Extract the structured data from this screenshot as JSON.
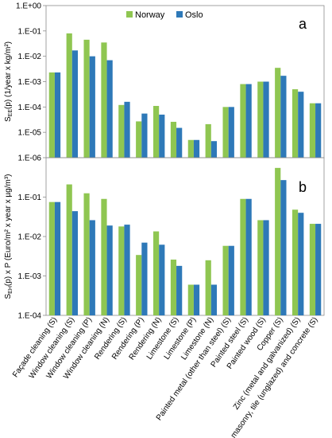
{
  "colors": {
    "norway": "#8fc651",
    "oslo": "#2e79b8",
    "frame": "#8c8c8c"
  },
  "chart_data": [
    {
      "type": "bar",
      "panel_letter": "a",
      "ylabel": "S_EE(p) (1/year x kg/m²)",
      "ylabel_parts": {
        "main": "S",
        "sub": "EE",
        "rest": "(p) (1/year x kg/m²)"
      },
      "yscale": "log",
      "ylim": [
        1e-06,
        1
      ],
      "ytick_labels": [
        "1.E+00",
        "1.E-01",
        "1.E-02",
        "1.E-03",
        "1.E-04",
        "1.E-05",
        "1.E-06"
      ],
      "legend_position": "top-center",
      "grid": false,
      "categories": [
        "Façade cleaning (S)",
        "Window cleaning (S)",
        "Window cleaning (P)",
        "Window cleaning (N)",
        "Rendering (S)",
        "Rendering (P)",
        "Rendering (N)",
        "Limestone (S)",
        "Limestone (P)",
        "Limestone (N)",
        "Painted metal (other than steel) (S)",
        "Painted steel (S)",
        "Painted wood (S)",
        "Copper (S)",
        "Zinc (metal and galvanized) (S)",
        "Brick masonry, tile (unglazed) and concrete (S)"
      ],
      "series": [
        {
          "name": "Norway",
          "values": [
            0.0023,
            0.08,
            0.045,
            0.035,
            0.00012,
            2.7e-05,
            0.00011,
            2.6e-05,
            5e-06,
            2.1e-05,
            0.0001,
            0.0008,
            0.001,
            0.0035,
            0.0005,
            0.00014
          ]
        },
        {
          "name": "Oslo",
          "values": [
            0.0023,
            0.017,
            0.01,
            0.007,
            0.00016,
            5.5e-05,
            5e-05,
            1.5e-05,
            5e-06,
            4.5e-06,
            0.0001,
            0.0008,
            0.001,
            0.0017,
            0.0004,
            0.00014
          ]
        }
      ]
    },
    {
      "type": "bar",
      "panel_letter": "b",
      "ylabel": "S_EH(p) x P (Euro/m² x year x µg/m³)",
      "ylabel_parts": {
        "main": "S",
        "sub": "EH",
        "rest": "(p) x P (Euro/m² x year x µg/m³)"
      },
      "yscale": "log",
      "ylim": [
        0.0001,
        1
      ],
      "ytick_labels": [
        "1.E-01",
        "1.E-02",
        "1.E-03",
        "1.E-04"
      ],
      "grid": false,
      "categories": [
        "Façade cleaning (S)",
        "Window cleaning (S)",
        "Window cleaning (P)",
        "Window cleaning (N)",
        "Rendering (S)",
        "Rendering (P)",
        "Rendering (N)",
        "Limestone (S)",
        "Limestone (P)",
        "Limestone (N)",
        "Painted metal (other than steel) (S)",
        "Painted steel (S)",
        "Painted wood (S)",
        "Copper (S)",
        "Zinc (metal and galvanized) (S)",
        "Brick masonry, tile (unglazed) and concrete (S)"
      ],
      "series": [
        {
          "name": "Norway",
          "values": [
            0.075,
            0.21,
            0.125,
            0.09,
            0.018,
            0.0034,
            0.0135,
            0.0026,
            0.0006,
            0.0025,
            0.0058,
            0.09,
            0.026,
            0.55,
            0.048,
            0.021
          ]
        },
        {
          "name": "Oslo",
          "values": [
            0.075,
            0.044,
            0.026,
            0.019,
            0.02,
            0.007,
            0.0062,
            0.0018,
            0.0006,
            0.0006,
            0.0058,
            0.09,
            0.026,
            0.27,
            0.04,
            0.021
          ]
        }
      ]
    }
  ]
}
